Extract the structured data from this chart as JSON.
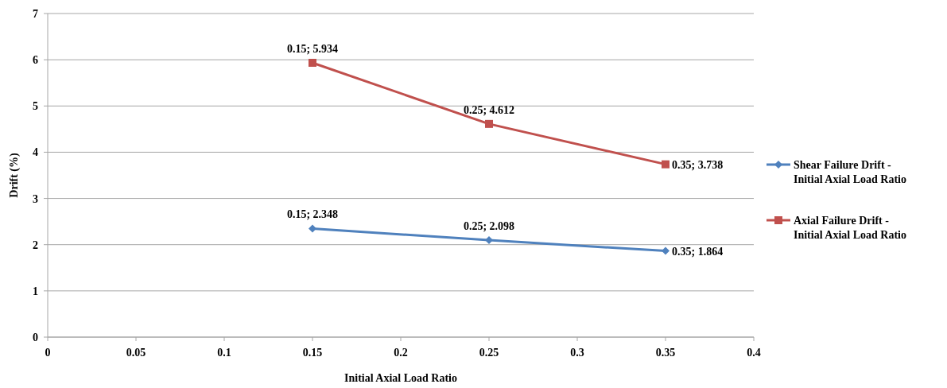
{
  "chart_data": {
    "type": "line",
    "xlabel": "Initial Axial Load Ratio",
    "ylabel": "Drift (%)",
    "xlim": [
      0,
      0.4
    ],
    "xticks": [
      0,
      0.05,
      0.1,
      0.15,
      0.2,
      0.25,
      0.3,
      0.35,
      0.4
    ],
    "ylim": [
      0,
      7
    ],
    "yticks": [
      0,
      1,
      2,
      3,
      4,
      5,
      6,
      7
    ],
    "grid": "y",
    "legend": "right",
    "x": [
      0.15,
      0.25,
      0.35
    ],
    "series": [
      {
        "name": "Shear Failure Drift - Initial Axial Load Ratio",
        "color": "#4f81bd",
        "marker": "diamond",
        "values": [
          2.348,
          2.098,
          1.864
        ],
        "value_labels": [
          "0.15; 2.348",
          "0.25; 2.098",
          "0.35; 1.864"
        ]
      },
      {
        "name": "Axial Failure Drift - Initial Axial Load Ratio",
        "color": "#c0504d",
        "marker": "square",
        "values": [
          5.934,
          4.612,
          3.738
        ],
        "value_labels": [
          "0.15; 5.934",
          "0.25; 4.612",
          "0.35; 3.738"
        ]
      }
    ]
  }
}
